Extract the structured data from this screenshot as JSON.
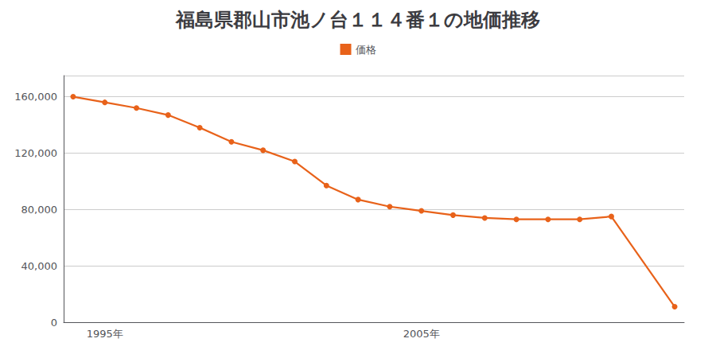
{
  "chart_data": {
    "type": "line",
    "title": "福島県郡山市池ノ台１１４番１の地価推移",
    "x": [
      1994,
      1995,
      1996,
      1997,
      1998,
      1999,
      2000,
      2001,
      2002,
      2003,
      2004,
      2005,
      2006,
      2007,
      2008,
      2009,
      2010,
      2011,
      2013
    ],
    "series": [
      {
        "name": "価格",
        "color": "#e8621a",
        "marker": "circle",
        "values": [
          160000,
          156000,
          152000,
          147000,
          138000,
          128000,
          122000,
          114000,
          97000,
          87000,
          82000,
          79000,
          76000,
          74000,
          73000,
          73000,
          73000,
          75000,
          11000
        ]
      }
    ],
    "xlim": [
      1993.7,
      2013.3
    ],
    "xticks": [
      {
        "value": 1995,
        "label": "1995年"
      },
      {
        "value": 2005,
        "label": "2005年"
      }
    ],
    "ylim": [
      0,
      175000
    ],
    "yticks": [
      0,
      {
        "value": 40000,
        "label": "40,000"
      },
      {
        "value": 80000,
        "label": "80,000"
      },
      {
        "value": 120000,
        "label": "120,000"
      },
      {
        "value": 160000,
        "label": "160,000"
      }
    ],
    "grid": true,
    "legend": "top"
  }
}
